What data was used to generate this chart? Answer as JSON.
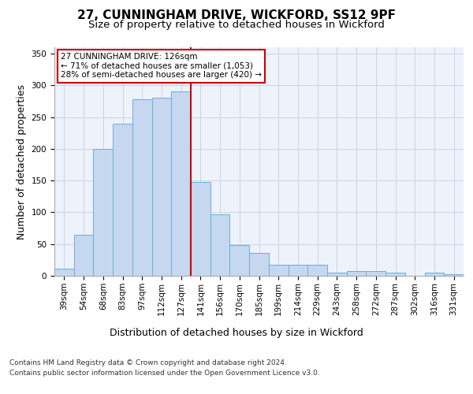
{
  "title_line1": "27, CUNNINGHAM DRIVE, WICKFORD, SS12 9PF",
  "title_line2": "Size of property relative to detached houses in Wickford",
  "xlabel": "Distribution of detached houses by size in Wickford",
  "ylabel": "Number of detached properties",
  "bar_categories": [
    "39sqm",
    "54sqm",
    "68sqm",
    "83sqm",
    "97sqm",
    "112sqm",
    "127sqm",
    "141sqm",
    "156sqm",
    "170sqm",
    "185sqm",
    "199sqm",
    "214sqm",
    "229sqm",
    "243sqm",
    "258sqm",
    "272sqm",
    "287sqm",
    "302sqm",
    "316sqm",
    "331sqm"
  ],
  "bar_values": [
    11,
    65,
    200,
    240,
    278,
    280,
    290,
    148,
    97,
    49,
    36,
    17,
    18,
    18,
    5,
    8,
    7,
    5,
    0,
    5,
    3
  ],
  "bar_color": "#c5d8f0",
  "bar_edge_color": "#6aaed6",
  "property_line_x": 6,
  "annotation_title": "27 CUNNINGHAM DRIVE: 126sqm",
  "annotation_line2": "← 71% of detached houses are smaller (1,053)",
  "annotation_line3": "28% of semi-detached houses are larger (420) →",
  "annotation_box_color": "#ffffff",
  "annotation_box_edge_color": "#cc0000",
  "vline_color": "#cc0000",
  "ylim": [
    0,
    360
  ],
  "yticks": [
    0,
    50,
    100,
    150,
    200,
    250,
    300,
    350
  ],
  "grid_color": "#c8d4e8",
  "background_color": "#eef2fa",
  "footer_line1": "Contains HM Land Registry data © Crown copyright and database right 2024.",
  "footer_line2": "Contains public sector information licensed under the Open Government Licence v3.0.",
  "title_fontsize": 11,
  "subtitle_fontsize": 9.5,
  "axis_label_fontsize": 9,
  "tick_fontsize": 7.5,
  "annotation_fontsize": 7.5,
  "footer_fontsize": 6.5
}
